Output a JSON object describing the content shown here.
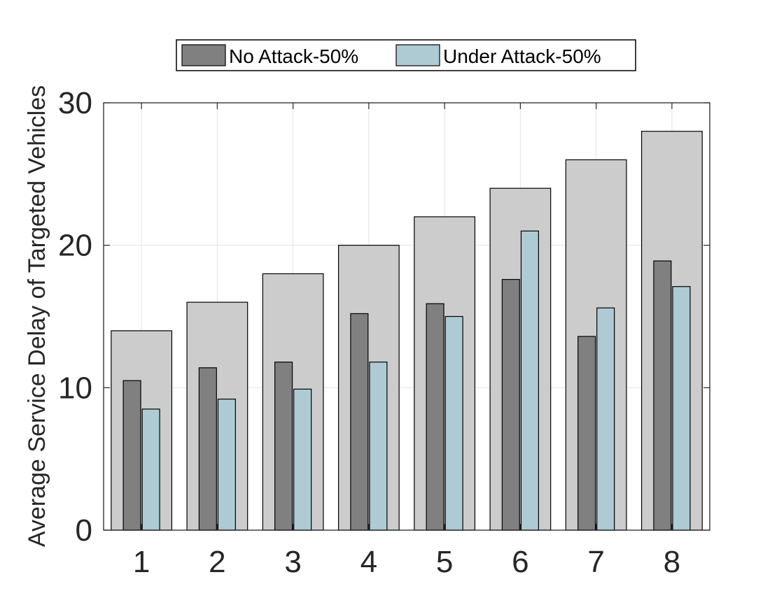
{
  "chart_data": {
    "type": "bar",
    "categories": [
      "1",
      "2",
      "3",
      "4",
      "5",
      "6",
      "7",
      "8"
    ],
    "ylabel": "Average Service Delay of Targeted Vehicles",
    "xlabel": "",
    "ylim": [
      0,
      30
    ],
    "yticks": [
      0,
      10,
      20,
      30
    ],
    "grid": true,
    "legend_position": "top-center",
    "background_bars": {
      "values": [
        14,
        16,
        18,
        20,
        22,
        24,
        26,
        28
      ],
      "color": "#cccccc"
    },
    "series": [
      {
        "name": "No Attack-50%",
        "values": [
          10.5,
          11.4,
          11.8,
          15.2,
          15.9,
          17.6,
          13.6,
          18.9
        ],
        "color": "#808080"
      },
      {
        "name": "Under Attack-50%",
        "values": [
          8.5,
          9.2,
          9.9,
          11.8,
          15.0,
          21.0,
          15.6,
          17.1
        ],
        "color": "#aecbd4"
      }
    ]
  }
}
